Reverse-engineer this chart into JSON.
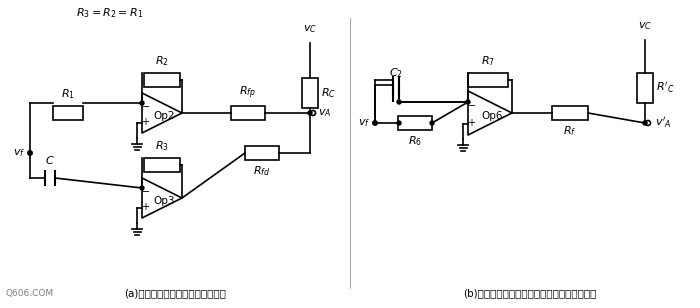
{
  "fig_width": 7.0,
  "fig_height": 3.08,
  "bg_color": "#ffffff",
  "line_color": "#000000",
  "line_width": 1.2,
  "caption_a": "(a)分别利用两个运算放大器的方式",
  "caption_b": "(b)利用一个运算放大器完成比例与微分的方式",
  "watermark": "Q606.COM"
}
